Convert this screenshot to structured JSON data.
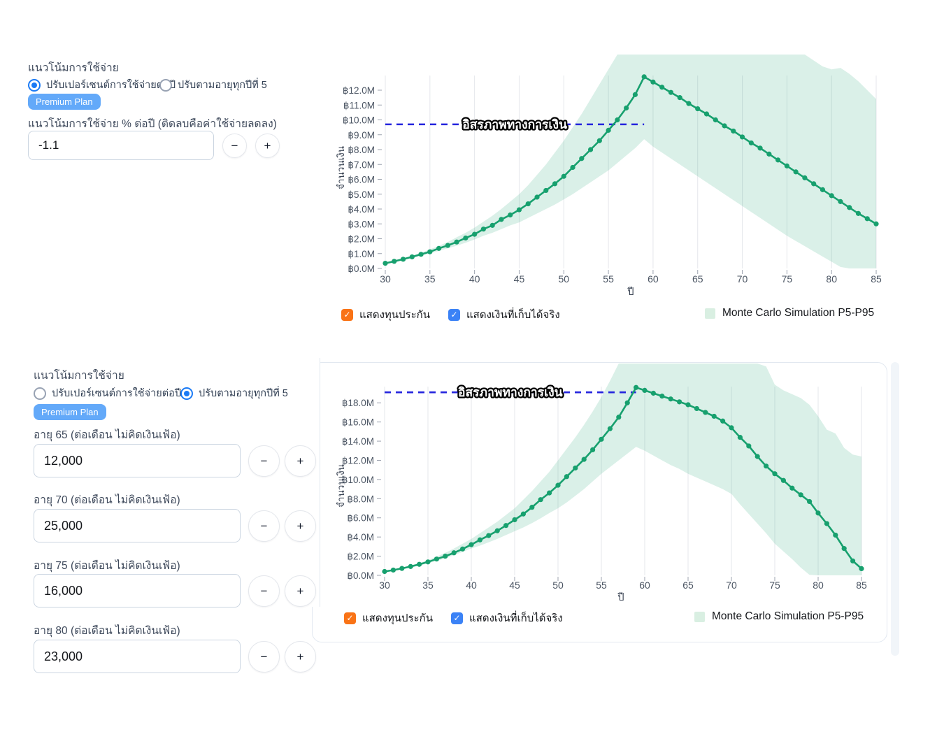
{
  "colors": {
    "accent_blue": "#1a7af5",
    "badge_blue": "#63a9f9",
    "checkbox_orange": "#f97316",
    "checkbox_blue": "#3b82f6",
    "line_green": "#17a06e",
    "band_green": "rgba(23,160,110,0.16)",
    "threshold_blue": "#2424dd"
  },
  "legend": {
    "show_insurance": "แสดงทุนประกัน",
    "show_actual": "แสดงเงินที่เก็บได้จริง",
    "band": "Monte Carlo Simulation P5-P95"
  },
  "controls_top": {
    "section_label": "แนวโน้มการใช้จ่าย",
    "radio_percent": "ปรับเปอร์เซนต์การใช้จ่ายต่อปี",
    "radio_age": "ปรับตามอายุทุกปีที่ 5",
    "selected_option": "percent",
    "badge": "Premium Plan",
    "field_label": "แนวโน้มการใช้จ่าย % ต่อปี (ติดลบคือค่าใช้จ่ายลดลง)",
    "field_value": "-1.1",
    "minus_label": "−",
    "plus_label": "+"
  },
  "controls_bottom": {
    "section_label": "แนวโน้มการใช้จ่าย",
    "radio_percent": "ปรับเปอร์เซนต์การใช้จ่ายต่อปี",
    "radio_age": "ปรับตามอายุทุกปีที่ 5",
    "selected_option": "age",
    "badge": "Premium Plan",
    "minus_label": "−",
    "plus_label": "+",
    "fields": [
      {
        "label": "อายุ 65 (ต่อเดือน ไม่คิดเงินเฟ้อ)",
        "value": "12,000"
      },
      {
        "label": "อายุ 70 (ต่อเดือน ไม่คิดเงินเฟ้อ)",
        "value": "25,000"
      },
      {
        "label": "อายุ 75 (ต่อเดือน ไม่คิดเงินเฟ้อ)",
        "value": "16,000"
      },
      {
        "label": "อายุ 80 (ต่อเดือน ไม่คิดเงินเฟ้อ)",
        "value": "23,000"
      }
    ]
  },
  "chart_data": [
    {
      "type": "line",
      "title": "",
      "xlabel": "ปี",
      "ylabel": "จำนวนเงิน",
      "xticks": [
        30,
        35,
        40,
        45,
        50,
        55,
        60,
        65,
        70,
        75,
        80,
        85
      ],
      "ytick_values": [
        0,
        1,
        2,
        3,
        4,
        5,
        6,
        7,
        8,
        9,
        10,
        11,
        12
      ],
      "ytick_labels": [
        "฿0.0M",
        "฿1.0M",
        "฿2.0M",
        "฿3.0M",
        "฿4.0M",
        "฿5.0M",
        "฿6.0M",
        "฿7.0M",
        "฿8.0M",
        "฿9.0M",
        "฿10.0M",
        "฿11.0M",
        "฿12.0M"
      ],
      "ylim": [
        0,
        14.4
      ],
      "x": [
        30,
        31,
        32,
        33,
        34,
        35,
        36,
        37,
        38,
        39,
        40,
        41,
        42,
        43,
        44,
        45,
        46,
        47,
        48,
        49,
        50,
        51,
        52,
        53,
        54,
        55,
        56,
        57,
        58,
        59,
        60,
        61,
        62,
        63,
        64,
        65,
        66,
        67,
        68,
        69,
        70,
        71,
        72,
        73,
        74,
        75,
        76,
        77,
        78,
        79,
        80,
        81,
        82,
        83,
        84,
        85
      ],
      "series": [
        {
          "name": "แสดงเงินที่เก็บได้จริง",
          "unit": "million THB",
          "values": [
            0.35,
            0.48,
            0.62,
            0.78,
            0.95,
            1.12,
            1.35,
            1.55,
            1.78,
            2.05,
            2.3,
            2.65,
            2.9,
            3.3,
            3.6,
            3.95,
            4.35,
            4.8,
            5.25,
            5.7,
            6.2,
            6.8,
            7.4,
            8.0,
            8.6,
            9.3,
            10.0,
            10.8,
            11.7,
            12.9,
            12.55,
            12.2,
            11.85,
            11.5,
            11.1,
            10.75,
            10.4,
            10.0,
            9.6,
            9.25,
            8.85,
            8.45,
            8.1,
            7.7,
            7.3,
            6.9,
            6.5,
            6.1,
            5.7,
            5.3,
            4.9,
            4.5,
            4.1,
            3.7,
            3.35,
            3.0
          ]
        }
      ],
      "band": {
        "name": "Monte Carlo Simulation P5-P95",
        "p5": [
          0.32,
          0.44,
          0.56,
          0.7,
          0.85,
          1.0,
          1.18,
          1.35,
          1.53,
          1.73,
          1.95,
          2.2,
          2.4,
          2.65,
          2.9,
          3.1,
          3.4,
          3.7,
          4.0,
          4.3,
          4.65,
          5.0,
          5.4,
          5.8,
          6.2,
          6.6,
          7.1,
          7.6,
          8.1,
          8.7,
          8.2,
          7.8,
          7.4,
          7.0,
          6.6,
          6.2,
          5.8,
          5.4,
          5.0,
          4.6,
          4.2,
          3.8,
          3.4,
          3.0,
          2.6,
          2.2,
          1.85,
          1.5,
          1.15,
          0.8,
          0.45,
          0.1,
          0,
          0,
          0,
          0
        ],
        "p95": [
          0.38,
          0.52,
          0.68,
          0.86,
          1.05,
          1.28,
          1.52,
          1.78,
          2.1,
          2.4,
          2.75,
          3.15,
          3.55,
          4.0,
          4.5,
          5.0,
          5.6,
          6.3,
          7.0,
          7.8,
          8.6,
          9.5,
          10.4,
          11.4,
          12.4,
          13.4,
          14.4,
          14.4,
          14.4,
          14.4,
          14.4,
          14.4,
          14.4,
          14.4,
          14.4,
          14.4,
          14.4,
          14.4,
          14.4,
          14.4,
          14.4,
          14.4,
          14.4,
          14.4,
          14.4,
          14.4,
          14.4,
          14.4,
          14.0,
          13.6,
          13.4,
          13.5,
          13.1,
          12.6,
          12.0,
          11.4
        ]
      },
      "threshold": {
        "label": "อิสรภาพทางการเงิน",
        "value": 9.7,
        "x_start": 30,
        "x_end": 59
      }
    },
    {
      "type": "line",
      "title": "",
      "xlabel": "ปี",
      "ylabel": "จำนวนเงิน",
      "xticks": [
        30,
        35,
        40,
        45,
        50,
        55,
        60,
        65,
        70,
        75,
        80,
        85
      ],
      "ytick_values": [
        0,
        2,
        4,
        6,
        8,
        10,
        12,
        14,
        16,
        18
      ],
      "ytick_labels": [
        "฿0.0M",
        "฿2.0M",
        "฿4.0M",
        "฿6.0M",
        "฿8.0M",
        "฿10.0M",
        "฿12.0M",
        "฿14.0M",
        "฿16.0M",
        "฿18.0M"
      ],
      "ylim": [
        0,
        22.1
      ],
      "x": [
        30,
        31,
        32,
        33,
        34,
        35,
        36,
        37,
        38,
        39,
        40,
        41,
        42,
        43,
        44,
        45,
        46,
        47,
        48,
        49,
        50,
        51,
        52,
        53,
        54,
        55,
        56,
        57,
        58,
        59,
        60,
        61,
        62,
        63,
        64,
        65,
        66,
        67,
        68,
        69,
        70,
        71,
        72,
        73,
        74,
        75,
        76,
        77,
        78,
        79,
        80,
        81,
        82,
        83,
        84,
        85
      ],
      "series": [
        {
          "name": "แสดงเงินที่เก็บได้จริง",
          "unit": "million THB",
          "values": [
            0.4,
            0.55,
            0.72,
            0.92,
            1.15,
            1.4,
            1.7,
            2.0,
            2.35,
            2.75,
            3.2,
            3.7,
            4.15,
            4.65,
            5.2,
            5.8,
            6.4,
            7.1,
            7.9,
            8.6,
            9.4,
            10.3,
            11.2,
            12.1,
            13.1,
            14.2,
            15.3,
            16.5,
            18.0,
            19.6,
            19.3,
            19.0,
            18.7,
            18.4,
            18.1,
            17.8,
            17.4,
            17.0,
            16.6,
            16.1,
            15.4,
            14.4,
            13.5,
            12.4,
            11.4,
            10.6,
            9.9,
            9.1,
            8.4,
            7.7,
            6.5,
            5.4,
            4.2,
            2.8,
            1.5,
            0.7
          ]
        }
      ],
      "band": {
        "name": "Monte Carlo Simulation P5-P95",
        "p5": [
          0.38,
          0.5,
          0.65,
          0.82,
          1.0,
          1.25,
          1.5,
          1.78,
          2.1,
          2.45,
          2.8,
          3.1,
          3.45,
          3.8,
          4.2,
          4.6,
          5.0,
          5.45,
          5.95,
          6.5,
          7.0,
          7.6,
          8.3,
          9.0,
          9.8,
          10.6,
          11.3,
          12.0,
          12.7,
          13.4,
          13.0,
          12.5,
          12.0,
          11.5,
          11.1,
          10.6,
          10.2,
          9.8,
          9.4,
          9.0,
          8.5,
          7.4,
          6.4,
          5.4,
          4.4,
          3.3,
          2.5,
          1.7,
          0.8,
          0.05,
          0,
          0,
          0,
          0,
          0,
          0
        ],
        "p95": [
          0.45,
          0.62,
          0.82,
          1.05,
          1.3,
          1.6,
          1.95,
          2.35,
          2.8,
          3.3,
          3.8,
          4.4,
          5.0,
          5.6,
          6.3,
          7.0,
          7.9,
          8.8,
          9.8,
          10.8,
          12.0,
          13.2,
          14.4,
          15.7,
          17.1,
          18.6,
          20.3,
          22.1,
          22.1,
          22.1,
          22.1,
          22.1,
          22.1,
          22.1,
          22.1,
          22.1,
          22.1,
          22.1,
          22.1,
          22.1,
          22.1,
          22.1,
          22.1,
          22.1,
          21.8,
          19.9,
          19.3,
          18.9,
          18.5,
          17.8,
          16.6,
          15.2,
          14.8,
          13.3,
          12.6,
          12.4
        ]
      },
      "threshold": {
        "label": "อิสรภาพทางการเงิน",
        "value": 19.1,
        "x_start": 30,
        "x_end": 59
      }
    }
  ]
}
